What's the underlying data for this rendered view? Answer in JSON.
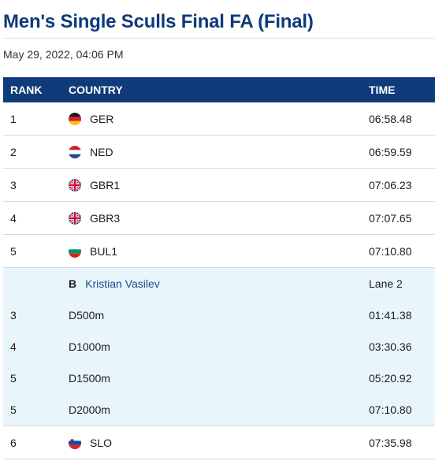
{
  "title": "Men's Single Sculls Final FA (Final)",
  "date": "May 29, 2022, 04:06 PM",
  "header": {
    "rank": "RANK",
    "country": "COUNTRY",
    "time": "TIME"
  },
  "colors": {
    "header_bg": "#0f3b7b",
    "title": "#0d3a7a",
    "expanded_bg": "#e8f6fb"
  },
  "results": [
    {
      "rank": "1",
      "country": "GER",
      "flag": "germany-flag-icon",
      "time": "06:58.48"
    },
    {
      "rank": "2",
      "country": "NED",
      "flag": "netherlands-flag-icon",
      "time": "06:59.59"
    },
    {
      "rank": "3",
      "country": "GBR1",
      "flag": "uk-flag-icon",
      "time": "07:06.23"
    },
    {
      "rank": "4",
      "country": "GBR3",
      "flag": "uk-flag-icon",
      "time": "07:07.65"
    },
    {
      "rank": "5",
      "country": "BUL1",
      "flag": "bulgaria-flag-icon",
      "time": "07:10.80"
    }
  ],
  "expanded": {
    "crew_position": "B",
    "crew_name": "Kristian Vasilev",
    "lane": "Lane 2",
    "splits": [
      {
        "rank": "3",
        "distance": "D500m",
        "time": "01:41.38"
      },
      {
        "rank": "4",
        "distance": "D1000m",
        "time": "03:30.36"
      },
      {
        "rank": "5",
        "distance": "D1500m",
        "time": "05:20.92"
      },
      {
        "rank": "5",
        "distance": "D2000m",
        "time": "07:10.80"
      }
    ]
  },
  "after": [
    {
      "rank": "6",
      "country": "SLO",
      "flag": "slovenia-flag-icon",
      "time": "07:35.98"
    }
  ]
}
